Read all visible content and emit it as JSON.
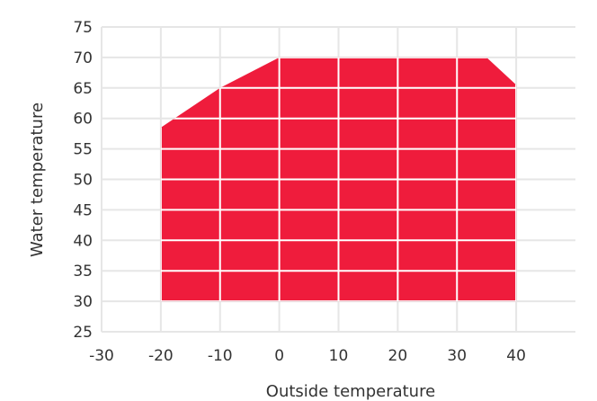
{
  "chart_data": {
    "type": "area",
    "title": "",
    "xlabel": "Outside temperature",
    "ylabel": "Water temperature",
    "xlim": [
      -30,
      50
    ],
    "ylim": [
      25,
      75
    ],
    "x_ticks": [
      -30,
      -20,
      -10,
      0,
      10,
      20,
      30,
      40
    ],
    "y_ticks": [
      25,
      30,
      35,
      40,
      45,
      50,
      55,
      60,
      65,
      70,
      75
    ],
    "grid": true,
    "legend": "none",
    "series": [
      {
        "color": "#ef1c3c",
        "points": [
          {
            "x": -20,
            "y": 30
          },
          {
            "x": -20,
            "y": 58.5
          },
          {
            "x": -10,
            "y": 65
          },
          {
            "x": 0,
            "y": 70
          },
          {
            "x": 35,
            "y": 70
          },
          {
            "x": 40,
            "y": 65.5
          },
          {
            "x": 40,
            "y": 30
          }
        ]
      }
    ]
  }
}
